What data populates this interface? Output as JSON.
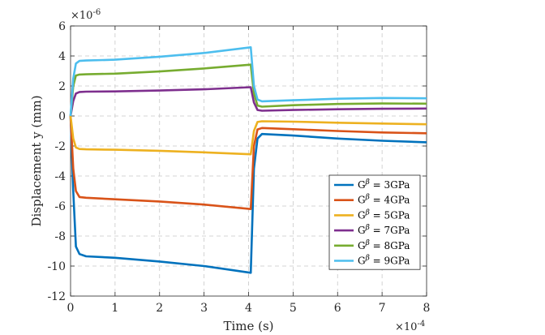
{
  "chart_data": {
    "type": "line",
    "xlabel": "Time (s)",
    "ylabel": "Displacement y (mm)",
    "x_multiplier": "×10",
    "x_multiplier_exp": "-4",
    "y_multiplier": "×10",
    "y_multiplier_exp": "-6",
    "xlim": [
      0,
      8
    ],
    "ylim": [
      -12,
      6
    ],
    "x_ticks": [
      "0",
      "1",
      "2",
      "3",
      "4",
      "5",
      "6",
      "7",
      "8"
    ],
    "y_ticks": [
      "-12",
      "-10",
      "-8",
      "-6",
      "-4",
      "-2",
      "0",
      "2",
      "4",
      "6"
    ],
    "x_tick_values": [
      0,
      1,
      2,
      3,
      4,
      5,
      6,
      7,
      8
    ],
    "y_tick_values": [
      -12,
      -10,
      -8,
      -6,
      -4,
      -2,
      0,
      2,
      4,
      6
    ],
    "grid": true,
    "legend_position": "bottom-right",
    "series": [
      {
        "name": "3GPa",
        "color": "#0072bd",
        "points": [
          [
            0,
            0
          ],
          [
            0.06,
            -5.0
          ],
          [
            0.12,
            -8.7
          ],
          [
            0.2,
            -9.2
          ],
          [
            0.35,
            -9.35
          ],
          [
            1,
            -9.45
          ],
          [
            2,
            -9.7
          ],
          [
            3,
            -10.0
          ],
          [
            4.05,
            -10.45
          ],
          [
            4.12,
            -3.5
          ],
          [
            4.2,
            -1.5
          ],
          [
            4.3,
            -1.2
          ],
          [
            5,
            -1.3
          ],
          [
            6,
            -1.5
          ],
          [
            7,
            -1.65
          ],
          [
            8,
            -1.75
          ]
        ]
      },
      {
        "name": "4GPa",
        "color": "#d95319",
        "points": [
          [
            0,
            0
          ],
          [
            0.06,
            -3.5
          ],
          [
            0.12,
            -5.0
          ],
          [
            0.2,
            -5.4
          ],
          [
            0.35,
            -5.45
          ],
          [
            1,
            -5.55
          ],
          [
            2,
            -5.7
          ],
          [
            3,
            -5.9
          ],
          [
            4.05,
            -6.2
          ],
          [
            4.12,
            -2.0
          ],
          [
            4.2,
            -0.9
          ],
          [
            4.3,
            -0.8
          ],
          [
            5,
            -0.88
          ],
          [
            6,
            -1.0
          ],
          [
            7,
            -1.1
          ],
          [
            8,
            -1.15
          ]
        ]
      },
      {
        "name": "5GPa",
        "color": "#edb120",
        "points": [
          [
            0,
            0
          ],
          [
            0.06,
            -1.5
          ],
          [
            0.12,
            -2.1
          ],
          [
            0.2,
            -2.2
          ],
          [
            0.35,
            -2.22
          ],
          [
            1,
            -2.25
          ],
          [
            2,
            -2.32
          ],
          [
            3,
            -2.42
          ],
          [
            4.05,
            -2.55
          ],
          [
            4.12,
            -1.0
          ],
          [
            4.2,
            -0.4
          ],
          [
            4.3,
            -0.35
          ],
          [
            5,
            -0.38
          ],
          [
            6,
            -0.45
          ],
          [
            7,
            -0.5
          ],
          [
            8,
            -0.55
          ]
        ]
      },
      {
        "name": "7GPa",
        "color": "#7e2f8e",
        "points": [
          [
            0,
            0
          ],
          [
            0.06,
            1.0
          ],
          [
            0.12,
            1.5
          ],
          [
            0.2,
            1.6
          ],
          [
            0.35,
            1.62
          ],
          [
            1,
            1.64
          ],
          [
            2,
            1.7
          ],
          [
            3,
            1.78
          ],
          [
            4.05,
            1.92
          ],
          [
            4.12,
            0.9
          ],
          [
            4.2,
            0.4
          ],
          [
            4.3,
            0.35
          ],
          [
            5,
            0.4
          ],
          [
            6,
            0.45
          ],
          [
            7,
            0.48
          ],
          [
            8,
            0.5
          ]
        ]
      },
      {
        "name": "8GPa",
        "color": "#77ac30",
        "points": [
          [
            0,
            0
          ],
          [
            0.06,
            2.0
          ],
          [
            0.12,
            2.7
          ],
          [
            0.2,
            2.76
          ],
          [
            0.35,
            2.78
          ],
          [
            1,
            2.82
          ],
          [
            2,
            2.97
          ],
          [
            3,
            3.17
          ],
          [
            4.05,
            3.42
          ],
          [
            4.12,
            1.5
          ],
          [
            4.2,
            0.7
          ],
          [
            4.3,
            0.62
          ],
          [
            5,
            0.72
          ],
          [
            6,
            0.8
          ],
          [
            7,
            0.83
          ],
          [
            8,
            0.82
          ]
        ]
      },
      {
        "name": "9GPa",
        "color": "#4dbeee",
        "points": [
          [
            0,
            0
          ],
          [
            0.06,
            2.5
          ],
          [
            0.12,
            3.5
          ],
          [
            0.2,
            3.67
          ],
          [
            0.35,
            3.7
          ],
          [
            1,
            3.75
          ],
          [
            2,
            3.95
          ],
          [
            3,
            4.2
          ],
          [
            4.05,
            4.58
          ],
          [
            4.12,
            2.0
          ],
          [
            4.2,
            1.1
          ],
          [
            4.3,
            0.98
          ],
          [
            5,
            1.05
          ],
          [
            6,
            1.15
          ],
          [
            7,
            1.2
          ],
          [
            8,
            1.18
          ]
        ]
      }
    ]
  }
}
